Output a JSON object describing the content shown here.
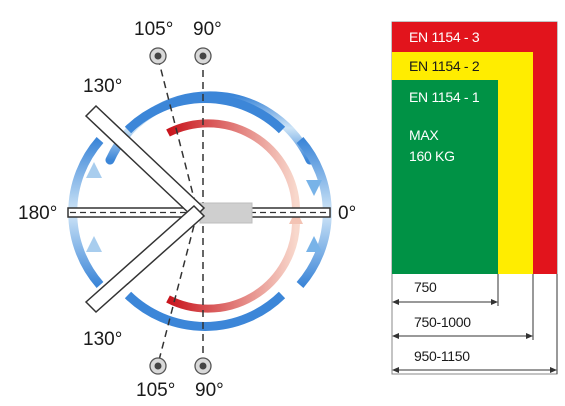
{
  "angles": {
    "top_105": "105°",
    "top_90": "90°",
    "upper_130": "130°",
    "left_180": "180°",
    "right_0": "0°",
    "lower_130": "130°",
    "bottom_105": "105°",
    "bottom_90": "90°"
  },
  "norms": {
    "en3": "EN 1154 - 3",
    "en2": "EN 1154 - 2",
    "en1": "EN 1154 - 1",
    "max_line1": "MAX",
    "max_line2": "160 KG"
  },
  "dimensions": {
    "d1": "750",
    "d2": "750-1000",
    "d3": "950-1150"
  },
  "colors": {
    "red": "#e2141c",
    "yellow": "#ffed00",
    "green": "#009245",
    "blue_arc": "#4a8ed6",
    "red_arc": "#d42a1f"
  }
}
